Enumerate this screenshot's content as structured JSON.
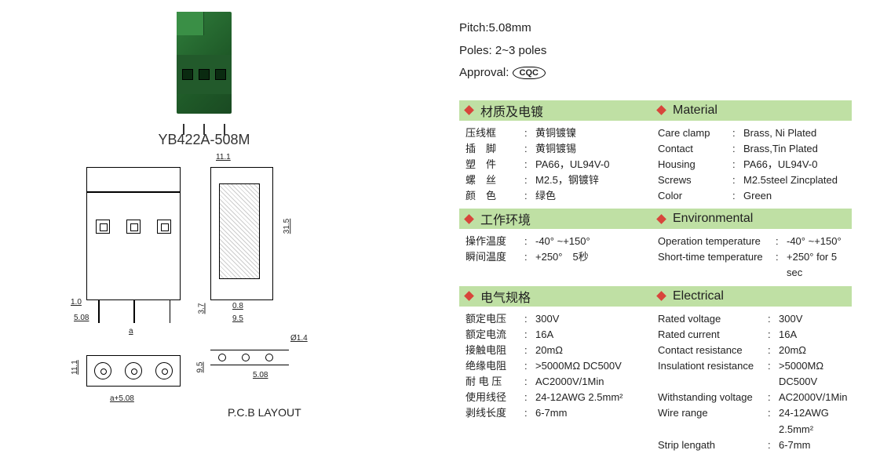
{
  "product": {
    "part_number": "YB422A-508M",
    "image_colors": {
      "body": "#2f7d3b",
      "dark": "#1a4a22",
      "front": "#225a2b"
    }
  },
  "drawings": {
    "pcb_label": "P.C.B  LAYOUT",
    "dims": {
      "d_11_1": "11.1",
      "d_1_0": "1.0",
      "d_5_08": "5.08",
      "d_a": "a",
      "d_31_5": "31.5",
      "d_3_7": "3.7",
      "d_0_8": "0.8",
      "d_9_5": "9.5",
      "d_11_1b": "11.1",
      "d_9_5b": "9.5",
      "d_5_08b": "5.08",
      "d_phi14": "Ø1.4",
      "d_a508": "a+5.08"
    }
  },
  "top_specs": {
    "pitch_label": "Pitch:",
    "pitch_value": "5.08mm",
    "poles_label": "Poles:",
    "poles_value": "2~3 poles",
    "approval_label": "Approval:",
    "approval_mark": "CQC"
  },
  "sections": {
    "material": {
      "title_cn": "材质及电镀",
      "title_en": "Material",
      "rows_cn": [
        {
          "k": "压线框",
          "v": "黄铜镀镍"
        },
        {
          "k": "插　脚",
          "v": "黄铜镀锡"
        },
        {
          "k": "塑　件",
          "v": "PA66，UL94V-0"
        },
        {
          "k": "螺　丝",
          "v": "M2.5，钢镀锌"
        },
        {
          "k": "颜　色",
          "v": "绿色"
        }
      ],
      "rows_en": [
        {
          "k": "Care clamp",
          "v": "Brass, Ni Plated"
        },
        {
          "k": "Contact",
          "v": "Brass,Tin Plated"
        },
        {
          "k": "Housing",
          "v": "PA66，UL94V-0"
        },
        {
          "k": "Screws",
          "v": "M2.5steel Zincplated"
        },
        {
          "k": "Color",
          "v": "Green"
        }
      ]
    },
    "environmental": {
      "title_cn": "工作环境",
      "title_en": "Environmental",
      "rows_cn": [
        {
          "k": "操作温度",
          "v": "-40° ~+150°"
        },
        {
          "k": "瞬间温度",
          "v": "+250°　5秒"
        }
      ],
      "rows_en": [
        {
          "k": "Operation temperature",
          "v": "-40° ~+150°"
        },
        {
          "k": "Short-time temperature",
          "v": "+250° for 5 sec"
        }
      ]
    },
    "electrical": {
      "title_cn": "电气规格",
      "title_en": "Electrical",
      "rows_cn": [
        {
          "k": "额定电压",
          "v": "300V"
        },
        {
          "k": "额定电流",
          "v": "16A"
        },
        {
          "k": "接触电阻",
          "v": "20mΩ"
        },
        {
          "k": "绝缘电阻",
          "v": ">5000MΩ DC500V"
        },
        {
          "k": "耐 电 压",
          "v": "AC2000V/1Min"
        },
        {
          "k": "使用线径",
          "v": "24-12AWG 2.5mm²"
        },
        {
          "k": "剥线长度",
          "v": "6-7mm"
        }
      ],
      "rows_en": [
        {
          "k": "Rated voltage",
          "v": "300V"
        },
        {
          "k": "Rated current",
          "v": "16A"
        },
        {
          "k": "Contact resistance",
          "v": "20mΩ"
        },
        {
          "k": "Insulationt resistance",
          "v": ">5000MΩ DC500V"
        },
        {
          "k": "Withstanding voltage",
          "v": "AC2000V/1Min"
        },
        {
          "k": "Wire range",
          "v": "24-12AWG 2.5mm²"
        },
        {
          "k": "Strip lengath",
          "v": "6-7mm"
        }
      ]
    }
  },
  "colors": {
    "header_bg": "#bfe0a4",
    "diamond": "#d8453b",
    "text": "#222222"
  }
}
